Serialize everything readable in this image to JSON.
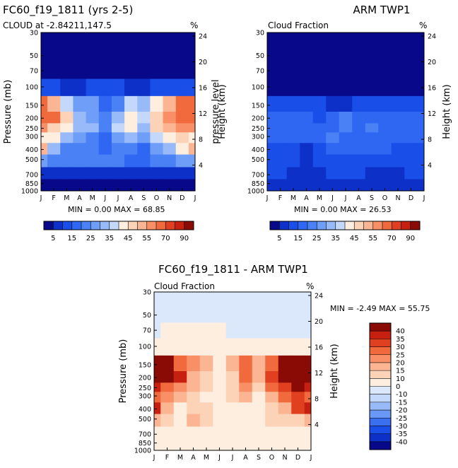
{
  "chart_data": [
    {
      "type": "heatmap",
      "title": "FC60_f19_1811 (yrs 2-5)",
      "subtitle": "CLOUD at -2.84211,147.5",
      "units": "%",
      "ylabel": "Pressure (mb)",
      "ylabel_right": "Height (km)",
      "x_ticks": [
        "J",
        "F",
        "M",
        "A",
        "M",
        "J",
        "J",
        "A",
        "S",
        "O",
        "N",
        "D",
        "J"
      ],
      "y_ticks": [
        30,
        50,
        70,
        100,
        150,
        200,
        250,
        300,
        400,
        500,
        700,
        850,
        1000
      ],
      "y_ticks_right": [
        24,
        20,
        16,
        12,
        8,
        4
      ],
      "stats": {
        "min_label": "MIN =",
        "min": "0.00",
        "max_label": "MAX =",
        "max": "68.85"
      },
      "colorbar": {
        "orientation": "horizontal",
        "levels": [
          5,
          10,
          15,
          20,
          25,
          30,
          35,
          40,
          45,
          50,
          55,
          60,
          70,
          80,
          90
        ],
        "labels": [
          "5",
          "15",
          "25",
          "35",
          "45",
          "55",
          "70",
          "90"
        ],
        "colors": [
          "#08088a",
          "#0c30c8",
          "#1a4ee8",
          "#2f66f2",
          "#4a82f6",
          "#6e9ef8",
          "#98baf9",
          "#c4d8fb",
          "#fdeee0",
          "#fdd3b8",
          "#fcb592",
          "#f98f66",
          "#f06a3d",
          "#e0401f",
          "#c82010",
          "#8a0a06"
        ]
      },
      "months": [
        "J",
        "F",
        "M",
        "A",
        "M",
        "J",
        "J",
        "A",
        "S",
        "O",
        "N",
        "D",
        "J"
      ],
      "levels_mb": [
        30,
        50,
        70,
        100,
        150,
        200,
        250,
        300,
        400,
        500,
        700,
        850,
        1000
      ],
      "grid": [
        [
          3,
          3,
          3,
          3,
          3,
          3,
          3,
          3,
          3,
          3,
          3,
          3,
          3
        ],
        [
          3,
          3,
          3,
          3,
          3,
          3,
          3,
          3,
          3,
          3,
          3,
          3,
          3
        ],
        [
          3,
          3,
          3,
          3,
          3,
          3,
          3,
          3,
          3,
          3,
          3,
          3,
          3
        ],
        [
          12,
          10,
          8,
          8,
          10,
          12,
          10,
          8,
          8,
          10,
          10,
          11,
          12
        ],
        [
          62,
          52,
          38,
          28,
          26,
          18,
          24,
          36,
          30,
          42,
          52,
          60,
          62
        ],
        [
          68,
          60,
          45,
          34,
          28,
          22,
          34,
          44,
          36,
          48,
          58,
          66,
          68
        ],
        [
          55,
          48,
          42,
          32,
          30,
          22,
          36,
          40,
          32,
          46,
          52,
          58,
          55
        ],
        [
          44,
          40,
          32,
          26,
          22,
          18,
          28,
          34,
          26,
          36,
          42,
          48,
          44
        ],
        [
          52,
          32,
          22,
          20,
          24,
          18,
          24,
          22,
          18,
          26,
          30,
          44,
          52
        ],
        [
          28,
          24,
          20,
          22,
          22,
          20,
          20,
          18,
          18,
          22,
          24,
          26,
          28
        ],
        [
          6,
          6,
          5,
          5,
          5,
          5,
          5,
          5,
          5,
          5,
          6,
          6,
          6
        ],
        [
          4,
          4,
          4,
          4,
          4,
          4,
          4,
          4,
          4,
          4,
          4,
          4,
          4
        ],
        [
          3,
          3,
          3,
          3,
          3,
          3,
          3,
          3,
          3,
          3,
          3,
          3,
          3
        ]
      ]
    },
    {
      "type": "heatmap",
      "title": "ARM TWP1",
      "subtitle": "Cloud Fraction",
      "units": "%",
      "ylabel": "pressure level",
      "ylabel_right": "Height (km)",
      "x_ticks": [
        "J",
        "F",
        "M",
        "A",
        "M",
        "J",
        "J",
        "A",
        "S",
        "O",
        "N",
        "D",
        "J"
      ],
      "y_ticks": [
        30,
        50,
        70,
        100,
        150,
        200,
        250,
        300,
        400,
        500,
        700,
        850,
        1000
      ],
      "y_ticks_right": [
        24,
        20,
        16,
        12,
        8,
        4
      ],
      "stats": {
        "min_label": "MIN =",
        "min": "0.00",
        "max_label": "MAX =",
        "max": "26.53"
      },
      "colorbar": {
        "orientation": "horizontal",
        "levels": [
          5,
          10,
          15,
          20,
          25,
          30,
          35,
          40,
          45,
          50,
          55,
          60,
          70,
          80,
          90
        ],
        "labels": [
          "5",
          "15",
          "25",
          "35",
          "45",
          "55",
          "70",
          "90"
        ],
        "colors": [
          "#08088a",
          "#0c30c8",
          "#1a4ee8",
          "#2f66f2",
          "#4a82f6",
          "#6e9ef8",
          "#98baf9",
          "#c4d8fb",
          "#fdeee0",
          "#fdd3b8",
          "#fcb592",
          "#f98f66",
          "#f06a3d",
          "#e0401f",
          "#c82010",
          "#8a0a06"
        ]
      },
      "months": [
        "J",
        "F",
        "M",
        "A",
        "M",
        "J",
        "J",
        "A",
        "S",
        "O",
        "N",
        "D",
        "J"
      ],
      "levels_mb": [
        30,
        50,
        70,
        100,
        150,
        200,
        250,
        300,
        400,
        500,
        700,
        850,
        1000
      ],
      "grid": [
        [
          2,
          2,
          2,
          2,
          2,
          2,
          2,
          2,
          2,
          2,
          2,
          2,
          2
        ],
        [
          2,
          2,
          2,
          2,
          2,
          2,
          2,
          2,
          2,
          2,
          2,
          2,
          2
        ],
        [
          2,
          2,
          2,
          2,
          2,
          2,
          2,
          2,
          2,
          2,
          2,
          2,
          2
        ],
        [
          3,
          3,
          3,
          3,
          3,
          3,
          3,
          3,
          3,
          3,
          3,
          3,
          3
        ],
        [
          12,
          12,
          11,
          11,
          10,
          9,
          9,
          11,
          12,
          13,
          12,
          12,
          12
        ],
        [
          16,
          17,
          16,
          15,
          14,
          16,
          20,
          18,
          19,
          18,
          17,
          16,
          16
        ],
        [
          17,
          19,
          18,
          17,
          16,
          18,
          22,
          19,
          20,
          19,
          18,
          18,
          17
        ],
        [
          16,
          17,
          16,
          15,
          15,
          20,
          18,
          18,
          17,
          17,
          16,
          17,
          16
        ],
        [
          14,
          14,
          13,
          8,
          14,
          18,
          17,
          16,
          15,
          15,
          14,
          14,
          14
        ],
        [
          13,
          12,
          11,
          6,
          12,
          14,
          14,
          13,
          12,
          12,
          12,
          12,
          13
        ],
        [
          11,
          10,
          8,
          5,
          9,
          11,
          12,
          11,
          9,
          8,
          9,
          10,
          11
        ],
        [
          8,
          8,
          7,
          6,
          7,
          9,
          9,
          8,
          8,
          8,
          8,
          8,
          8
        ],
        [
          5,
          5,
          5,
          5,
          5,
          5,
          5,
          5,
          5,
          5,
          5,
          5,
          5
        ]
      ]
    },
    {
      "type": "heatmap",
      "title": "FC60_f19_1811 - ARM TWP1",
      "subtitle": "Cloud Fraction",
      "units": "%",
      "ylabel": "Pressure (mb)",
      "ylabel_right": "Height (km)",
      "x_ticks": [
        "J",
        "F",
        "M",
        "A",
        "M",
        "J",
        "J",
        "A",
        "S",
        "O",
        "N",
        "D",
        "J"
      ],
      "y_ticks": [
        30,
        50,
        70,
        100,
        150,
        200,
        250,
        300,
        400,
        500,
        700,
        850,
        1000
      ],
      "y_ticks_right": [
        24,
        20,
        16,
        12,
        8,
        4
      ],
      "stats": {
        "min_label": "MIN =",
        "min": "-2.49",
        "max_label": "MAX =",
        "max": "55.75"
      },
      "colorbar": {
        "orientation": "vertical",
        "levels": [
          -40,
          -35,
          -30,
          -25,
          -20,
          -15,
          -10,
          0,
          10,
          15,
          20,
          25,
          30,
          35,
          40
        ],
        "labels": [
          "40",
          "35",
          "30",
          "25",
          "20",
          "15",
          "10",
          "0",
          "-10",
          "-15",
          "-20",
          "-25",
          "-30",
          "-35",
          "-40"
        ],
        "colors": [
          "#08088a",
          "#0c30c8",
          "#1a4ee8",
          "#3a70f0",
          "#6a98f6",
          "#98baf9",
          "#c4d8fb",
          "#dbe8fb",
          "#fdeee0",
          "#fdd3b8",
          "#fcb592",
          "#f98f66",
          "#f06a3d",
          "#e0401f",
          "#c82010",
          "#8a0a06"
        ]
      },
      "months": [
        "J",
        "F",
        "M",
        "A",
        "M",
        "J",
        "J",
        "A",
        "S",
        "O",
        "N",
        "D",
        "J"
      ],
      "levels_mb": [
        30,
        50,
        70,
        100,
        150,
        200,
        250,
        300,
        400,
        500,
        700,
        850,
        1000
      ],
      "grid": [
        [
          -1,
          -1,
          -1,
          -1,
          -1,
          -1,
          -1,
          -1,
          -1,
          -1,
          -1,
          -1,
          -1
        ],
        [
          -1,
          -1,
          -1,
          -1,
          -1,
          -1,
          -1,
          -1,
          -1,
          -1,
          -1,
          -1,
          -1
        ],
        [
          -1,
          1,
          2,
          3,
          1,
          3,
          -1,
          -1,
          -1,
          -1,
          -1,
          -1,
          -1
        ],
        [
          5,
          6,
          6,
          6,
          6,
          6,
          6,
          6,
          6,
          6,
          6,
          6,
          5
        ],
        [
          50,
          40,
          27,
          20,
          16,
          9,
          15,
          25,
          18,
          29,
          40,
          48,
          50
        ],
        [
          52,
          43,
          35,
          19,
          14,
          6,
          14,
          26,
          17,
          30,
          41,
          50,
          52
        ],
        [
          38,
          29,
          24,
          15,
          14,
          4,
          14,
          21,
          12,
          27,
          34,
          40,
          38
        ],
        [
          28,
          23,
          16,
          11,
          7,
          2,
          10,
          16,
          9,
          19,
          26,
          31,
          28
        ],
        [
          38,
          18,
          9,
          12,
          10,
          3,
          7,
          6,
          3,
          11,
          16,
          30,
          38
        ],
        [
          15,
          12,
          9,
          16,
          10,
          6,
          6,
          5,
          6,
          10,
          12,
          14,
          15
        ],
        [
          1,
          1,
          1,
          1,
          1,
          1,
          1,
          1,
          1,
          1,
          1,
          1,
          1
        ],
        [
          1,
          1,
          1,
          1,
          1,
          1,
          1,
          1,
          1,
          1,
          1,
          1,
          1
        ],
        [
          1,
          1,
          1,
          1,
          1,
          1,
          1,
          1,
          1,
          1,
          1,
          1,
          1
        ]
      ]
    }
  ]
}
